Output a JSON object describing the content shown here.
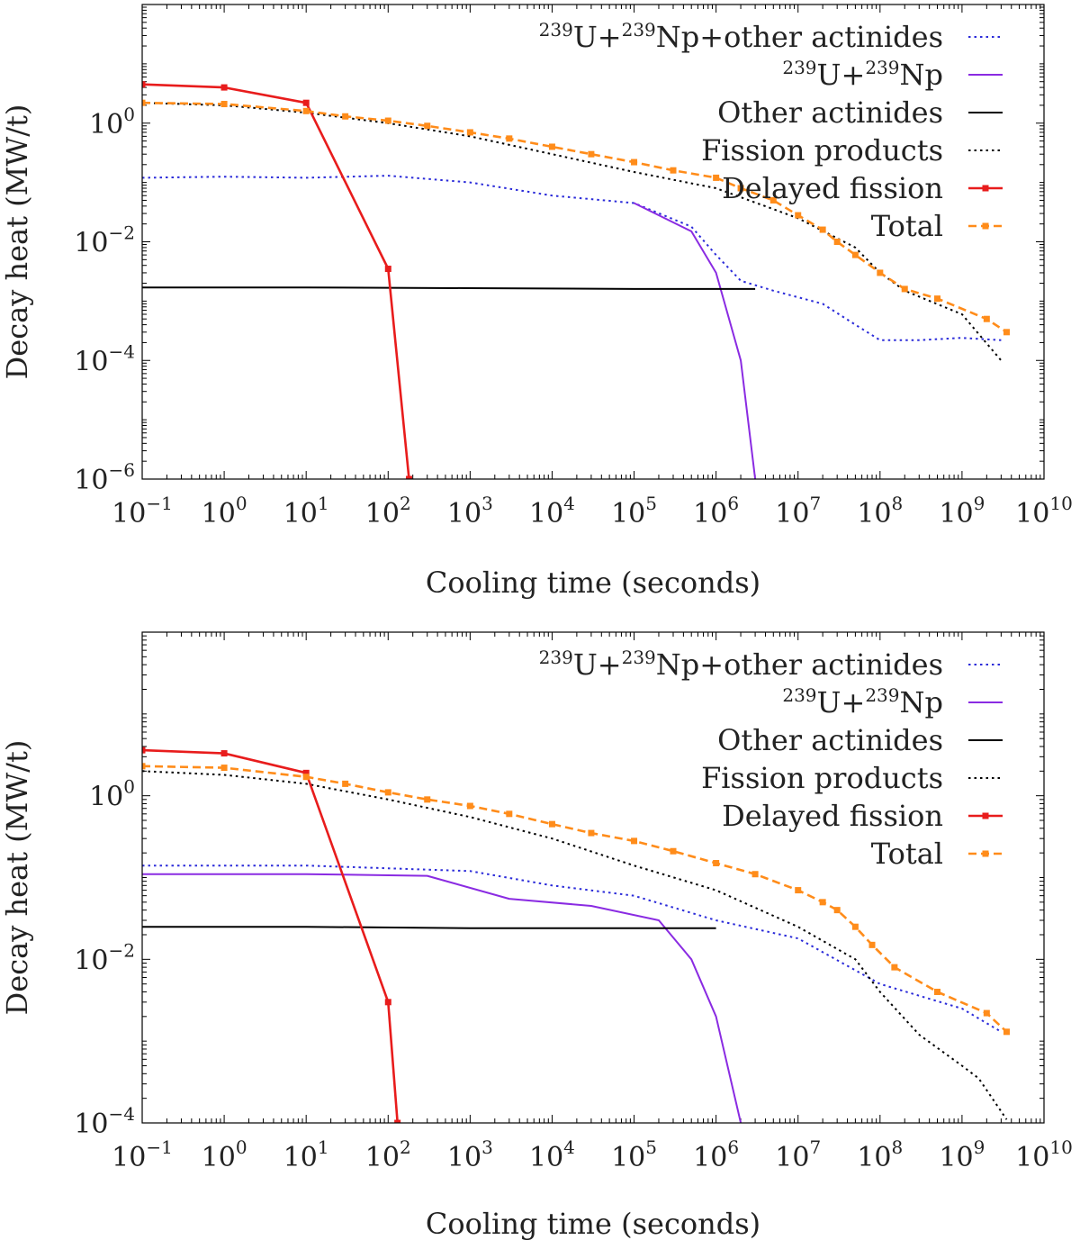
{
  "chart_data": [
    {
      "type": "line",
      "panel": "top",
      "xlabel": "Cooling time (seconds)",
      "ylabel": "Decay heat (MW/t)",
      "xscale": "log",
      "yscale": "log",
      "xlim": [
        0.1,
        10000000000
      ],
      "ylim": [
        1e-06,
        100
      ],
      "x_ticks": [
        {
          "base": "10",
          "exp": "−1"
        },
        {
          "base": "10",
          "exp": "0"
        },
        {
          "base": "10",
          "exp": "1"
        },
        {
          "base": "10",
          "exp": "2"
        },
        {
          "base": "10",
          "exp": "3"
        },
        {
          "base": "10",
          "exp": "4"
        },
        {
          "base": "10",
          "exp": "5"
        },
        {
          "base": "10",
          "exp": "6"
        },
        {
          "base": "10",
          "exp": "7"
        },
        {
          "base": "10",
          "exp": "8"
        },
        {
          "base": "10",
          "exp": "9"
        },
        {
          "base": "10",
          "exp": "10"
        }
      ],
      "y_ticks": [
        {
          "base": "10",
          "exp": "0"
        },
        {
          "base": "10",
          "exp": "−2"
        },
        {
          "base": "10",
          "exp": "−4"
        },
        {
          "base": "10",
          "exp": "−6"
        }
      ],
      "legend_position": "top-right",
      "series": [
        {
          "name": "239U+239Np+other actinides",
          "label_parts": [
            {
              "sup": "239"
            },
            {
              "t": "U+"
            },
            {
              "sup": "239"
            },
            {
              "t": "Np+other actinides"
            }
          ],
          "color": "#2b2bd9",
          "style": "dotted",
          "marker": "none",
          "points": [
            [
              0.1,
              0.12
            ],
            [
              1,
              0.125
            ],
            [
              10,
              0.12
            ],
            [
              100,
              0.13
            ],
            [
              1000,
              0.1
            ],
            [
              10000,
              0.06
            ],
            [
              100000,
              0.045
            ],
            [
              500000,
              0.018
            ],
            [
              1000000,
              0.006
            ],
            [
              2000000,
              0.0022
            ],
            [
              5000000,
              0.0015
            ],
            [
              20000000,
              0.0009
            ],
            [
              50000000,
              0.0004
            ],
            [
              100000000,
              0.00022
            ],
            [
              300000000,
              0.00022
            ],
            [
              1000000000,
              0.00024
            ],
            [
              3000000000,
              0.00022
            ]
          ]
        },
        {
          "name": "239U+239Np",
          "label_parts": [
            {
              "sup": "239"
            },
            {
              "t": "U+"
            },
            {
              "sup": "239"
            },
            {
              "t": "Np"
            }
          ],
          "color": "#8a2be2",
          "style": "solid",
          "marker": "none",
          "points": [
            [
              100000,
              0.045
            ],
            [
              500000,
              0.015
            ],
            [
              1000000,
              0.003
            ],
            [
              2000000,
              0.0001
            ],
            [
              3000000,
              1e-06
            ]
          ]
        },
        {
          "name": "Other actinides",
          "label_parts": [
            {
              "t": "Other actinides"
            }
          ],
          "color": "#000000",
          "style": "solid",
          "marker": "none",
          "points": [
            [
              0.1,
              0.0017
            ],
            [
              10,
              0.0017
            ],
            [
              1000,
              0.00165
            ],
            [
              100000,
              0.0016
            ],
            [
              3000000,
              0.0016
            ]
          ]
        },
        {
          "name": "Fission products",
          "label_parts": [
            {
              "t": "Fission products"
            }
          ],
          "color": "#000000",
          "style": "dotted",
          "marker": "none",
          "points": [
            [
              0.1,
              2.2
            ],
            [
              1,
              2.0
            ],
            [
              10,
              1.5
            ],
            [
              100,
              1.0
            ],
            [
              1000,
              0.6
            ],
            [
              10000,
              0.3
            ],
            [
              100000,
              0.15
            ],
            [
              1000000,
              0.08
            ],
            [
              10000000,
              0.025
            ],
            [
              50000000,
              0.008
            ],
            [
              100000000,
              0.003
            ],
            [
              200000000,
              0.0015
            ],
            [
              1000000000,
              0.0006
            ],
            [
              3000000000,
              0.0001
            ]
          ]
        },
        {
          "name": "Delayed fission",
          "label_parts": [
            {
              "t": "Delayed fission"
            }
          ],
          "color": "#e81c1c",
          "style": "solid",
          "marker": "square",
          "points": [
            [
              0.1,
              4.5
            ],
            [
              1,
              4.0
            ],
            [
              10,
              2.2
            ],
            [
              100,
              0.0035
            ],
            [
              180,
              1e-06
            ]
          ]
        },
        {
          "name": "Total",
          "label_parts": [
            {
              "t": "Total"
            }
          ],
          "color": "#ff8c1a",
          "style": "dashed",
          "marker": "square",
          "points": [
            [
              0.1,
              2.2
            ],
            [
              1,
              2.1
            ],
            [
              10,
              1.6
            ],
            [
              30,
              1.3
            ],
            [
              100,
              1.1
            ],
            [
              300,
              0.9
            ],
            [
              1000,
              0.7
            ],
            [
              3000,
              0.55
            ],
            [
              10000,
              0.4
            ],
            [
              30000,
              0.3
            ],
            [
              100000,
              0.22
            ],
            [
              300000,
              0.16
            ],
            [
              1000000,
              0.12
            ],
            [
              2000000,
              0.08
            ],
            [
              5000000,
              0.05
            ],
            [
              10000000,
              0.028
            ],
            [
              20000000,
              0.016
            ],
            [
              30000000,
              0.01
            ],
            [
              50000000,
              0.006
            ],
            [
              100000000,
              0.003
            ],
            [
              200000000,
              0.0016
            ],
            [
              500000000,
              0.0011
            ],
            [
              2000000000,
              0.0005
            ],
            [
              3500000000,
              0.0003
            ]
          ]
        }
      ]
    },
    {
      "type": "line",
      "panel": "bottom",
      "xlabel": "Cooling time (seconds)",
      "ylabel": "Decay heat (MW/t)",
      "xscale": "log",
      "yscale": "log",
      "xlim": [
        0.1,
        10000000000
      ],
      "ylim": [
        0.0001,
        100
      ],
      "x_ticks": [
        {
          "base": "10",
          "exp": "−1"
        },
        {
          "base": "10",
          "exp": "0"
        },
        {
          "base": "10",
          "exp": "1"
        },
        {
          "base": "10",
          "exp": "2"
        },
        {
          "base": "10",
          "exp": "3"
        },
        {
          "base": "10",
          "exp": "4"
        },
        {
          "base": "10",
          "exp": "5"
        },
        {
          "base": "10",
          "exp": "6"
        },
        {
          "base": "10",
          "exp": "7"
        },
        {
          "base": "10",
          "exp": "8"
        },
        {
          "base": "10",
          "exp": "9"
        },
        {
          "base": "10",
          "exp": "10"
        }
      ],
      "y_ticks": [
        {
          "base": "10",
          "exp": "0"
        },
        {
          "base": "10",
          "exp": "−2"
        },
        {
          "base": "10",
          "exp": "−4"
        }
      ],
      "legend_position": "top-right",
      "series": [
        {
          "name": "239U+239Np+other actinides",
          "label_parts": [
            {
              "sup": "239"
            },
            {
              "t": "U+"
            },
            {
              "sup": "239"
            },
            {
              "t": "Np+other actinides"
            }
          ],
          "color": "#2b2bd9",
          "style": "dotted",
          "marker": "none",
          "points": [
            [
              0.1,
              0.14
            ],
            [
              10,
              0.14
            ],
            [
              1000,
              0.12
            ],
            [
              10000,
              0.08
            ],
            [
              100000,
              0.06
            ],
            [
              1000000,
              0.03
            ],
            [
              10000000,
              0.018
            ],
            [
              100000000,
              0.005
            ],
            [
              1000000000,
              0.0025
            ],
            [
              3000000000,
              0.0013
            ]
          ]
        },
        {
          "name": "239U+239Np",
          "label_parts": [
            {
              "sup": "239"
            },
            {
              "t": "U+"
            },
            {
              "sup": "239"
            },
            {
              "t": "Np"
            }
          ],
          "color": "#8a2be2",
          "style": "solid",
          "marker": "none",
          "points": [
            [
              0.1,
              0.11
            ],
            [
              10,
              0.11
            ],
            [
              300,
              0.105
            ],
            [
              3000,
              0.055
            ],
            [
              30000,
              0.045
            ],
            [
              200000,
              0.03
            ],
            [
              500000,
              0.01
            ],
            [
              1000000,
              0.002
            ],
            [
              2000000,
              0.0001
            ]
          ]
        },
        {
          "name": "Other actinides",
          "label_parts": [
            {
              "t": "Other actinides"
            }
          ],
          "color": "#000000",
          "style": "solid",
          "marker": "none",
          "points": [
            [
              0.1,
              0.025
            ],
            [
              10,
              0.025
            ],
            [
              1000,
              0.024
            ],
            [
              100000,
              0.024
            ],
            [
              1000000,
              0.024
            ]
          ]
        },
        {
          "name": "Fission products",
          "label_parts": [
            {
              "t": "Fission products"
            }
          ],
          "color": "#000000",
          "style": "dotted",
          "marker": "none",
          "points": [
            [
              0.1,
              2.0
            ],
            [
              1,
              1.8
            ],
            [
              10,
              1.4
            ],
            [
              100,
              0.9
            ],
            [
              1000,
              0.55
            ],
            [
              10000,
              0.3
            ],
            [
              100000,
              0.14
            ],
            [
              1000000,
              0.07
            ],
            [
              10000000,
              0.025
            ],
            [
              50000000,
              0.01
            ],
            [
              100000000,
              0.004
            ],
            [
              300000000,
              0.0012
            ],
            [
              1000000000,
              0.0005
            ],
            [
              1600000000,
              0.00035
            ],
            [
              3500000000,
              0.00011
            ]
          ]
        },
        {
          "name": "Delayed fission",
          "label_parts": [
            {
              "t": "Delayed fission"
            }
          ],
          "color": "#e81c1c",
          "style": "solid",
          "marker": "square",
          "points": [
            [
              0.1,
              3.6
            ],
            [
              1,
              3.3
            ],
            [
              10,
              1.9
            ],
            [
              100,
              0.003
            ],
            [
              130,
              0.0001
            ]
          ]
        },
        {
          "name": "Total",
          "label_parts": [
            {
              "t": "Total"
            }
          ],
          "color": "#ff8c1a",
          "style": "dashed",
          "marker": "square",
          "points": [
            [
              0.1,
              2.3
            ],
            [
              1,
              2.2
            ],
            [
              10,
              1.7
            ],
            [
              30,
              1.4
            ],
            [
              100,
              1.1
            ],
            [
              300,
              0.9
            ],
            [
              1000,
              0.75
            ],
            [
              3000,
              0.6
            ],
            [
              10000,
              0.45
            ],
            [
              30000,
              0.35
            ],
            [
              100000,
              0.28
            ],
            [
              300000,
              0.21
            ],
            [
              1000000,
              0.15
            ],
            [
              3000000,
              0.11
            ],
            [
              10000000,
              0.07
            ],
            [
              20000000,
              0.05
            ],
            [
              30000000,
              0.04
            ],
            [
              50000000,
              0.025
            ],
            [
              80000000,
              0.015
            ],
            [
              150000000,
              0.008
            ],
            [
              500000000,
              0.004
            ],
            [
              2000000000,
              0.0022
            ],
            [
              3500000000,
              0.0013
            ]
          ]
        }
      ]
    }
  ]
}
